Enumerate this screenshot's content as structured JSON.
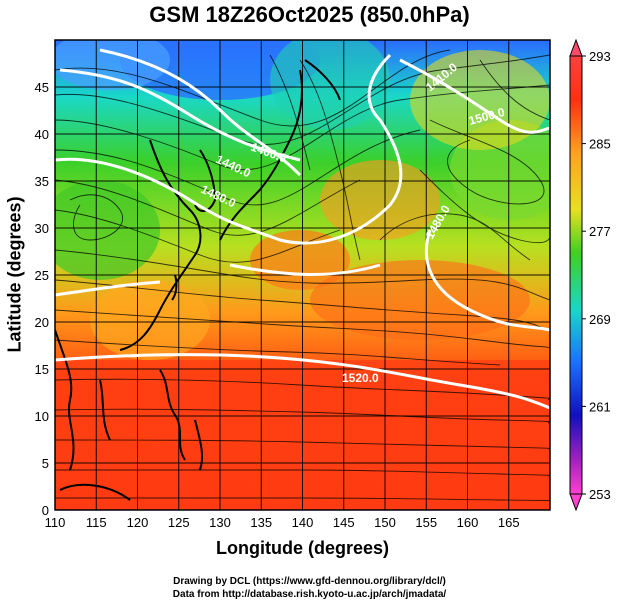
{
  "title": "GSM 18Z26Oct2025 (850.0hPa)",
  "xlabel": "Longitude (degrees)",
  "ylabel": "Latitude  (degrees)",
  "credits": [
    "Drawing by DCL (https://www.gfd-dennou.org/library/dcl/)",
    "Data from http://database.rish.kyoto-u.ac.jp/arch/jmadata/"
  ],
  "x_ticks": [
    "110",
    "115",
    "120",
    "125",
    "130",
    "135",
    "140",
    "145",
    "150",
    "155",
    "160",
    "165"
  ],
  "y_ticks": [
    "0",
    "5",
    "10",
    "15",
    "20",
    "25",
    "30",
    "35",
    "40",
    "45"
  ],
  "colorbar_ticks": [
    "293",
    "285",
    "277",
    "269",
    "261",
    "253"
  ],
  "contour_labels": [
    "1400.0",
    "1440.0",
    "1480.0",
    "1410.0",
    "1520.0",
    "1480.0",
    "1500.0"
  ],
  "colors": {
    "warm": "#ff3b10",
    "orange": "#ff9a1a",
    "yellow": "#e8e020",
    "green": "#3bd02a",
    "cyan": "#1ad8d8",
    "blue": "#1a6cff",
    "purple": "#a020c0",
    "contour": "#ffffff",
    "coast": "#000000"
  },
  "map": {
    "lon_range": [
      110,
      170
    ],
    "lat_range": [
      0,
      50
    ],
    "colorbar_range": [
      253,
      293
    ]
  }
}
